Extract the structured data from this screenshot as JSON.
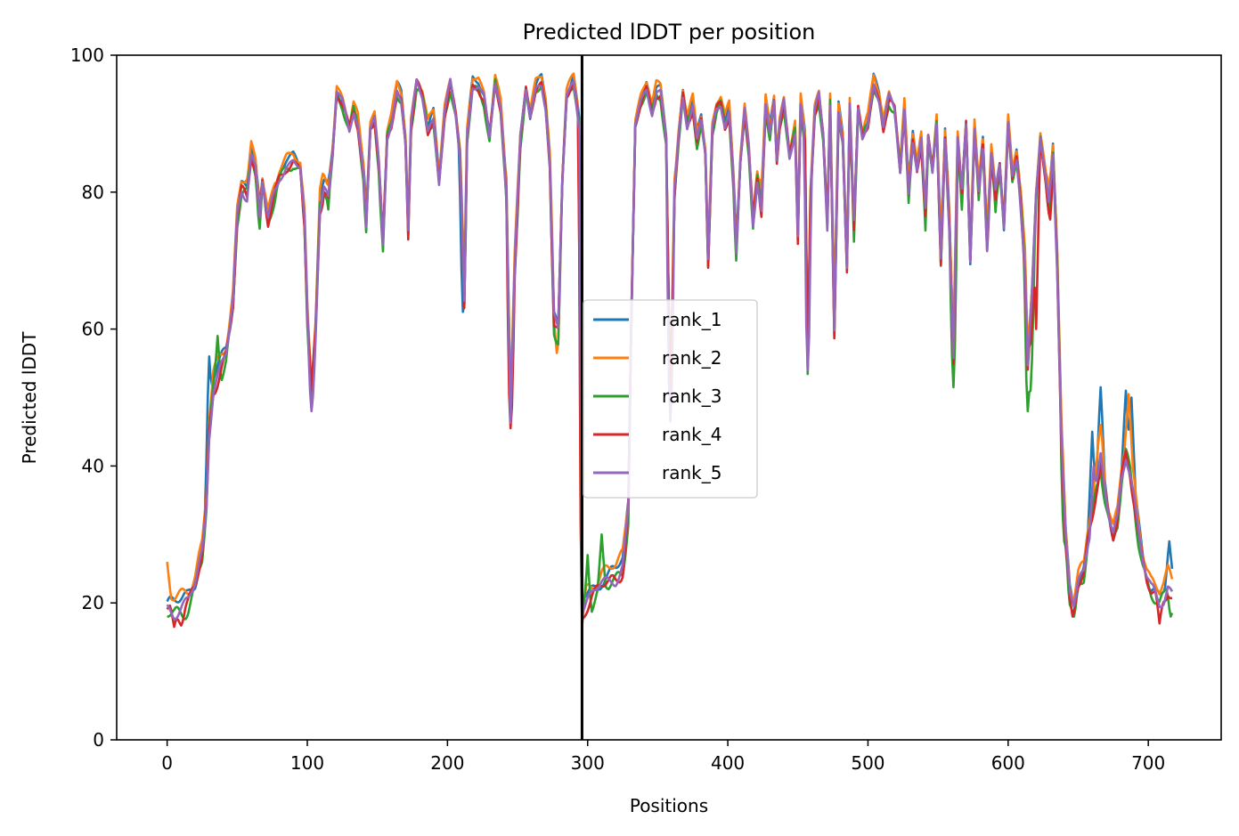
{
  "chart_data": {
    "type": "line",
    "title": "Predicted lDDT per position",
    "xlabel": "Positions",
    "ylabel": "Predicted lDDT",
    "xlim": [
      -36,
      752
    ],
    "ylim": [
      0,
      100
    ],
    "xticks": [
      0,
      100,
      200,
      300,
      400,
      500,
      600,
      700
    ],
    "yticks": [
      0,
      20,
      40,
      60,
      80,
      100
    ],
    "grid": false,
    "legend_position": "center",
    "vline_x": 296,
    "base_profile": [
      [
        0,
        19
      ],
      [
        5,
        19
      ],
      [
        10,
        20
      ],
      [
        15,
        21
      ],
      [
        20,
        23
      ],
      [
        25,
        27
      ],
      [
        28,
        34
      ],
      [
        30,
        45
      ],
      [
        33,
        52
      ],
      [
        38,
        55
      ],
      [
        42,
        57
      ],
      [
        45,
        61
      ],
      [
        47,
        64
      ],
      [
        50,
        76
      ],
      [
        53,
        80
      ],
      [
        57,
        80
      ],
      [
        60,
        86
      ],
      [
        63,
        84
      ],
      [
        66,
        77
      ],
      [
        68,
        82
      ],
      [
        72,
        76
      ],
      [
        76,
        79
      ],
      [
        80,
        82
      ],
      [
        85,
        84
      ],
      [
        90,
        85
      ],
      [
        95,
        84
      ],
      [
        98,
        76
      ],
      [
        100,
        62
      ],
      [
        103,
        50
      ],
      [
        106,
        60
      ],
      [
        109,
        78
      ],
      [
        112,
        81
      ],
      [
        115,
        80
      ],
      [
        118,
        86
      ],
      [
        121,
        95
      ],
      [
        125,
        93
      ],
      [
        130,
        89
      ],
      [
        133,
        92
      ],
      [
        136,
        90
      ],
      [
        140,
        83
      ],
      [
        142,
        76
      ],
      [
        145,
        90
      ],
      [
        148,
        91
      ],
      [
        151,
        84
      ],
      [
        154,
        72
      ],
      [
        157,
        88
      ],
      [
        160,
        90
      ],
      [
        164,
        95
      ],
      [
        167,
        94
      ],
      [
        170,
        88
      ],
      [
        172,
        75
      ],
      [
        174,
        90
      ],
      [
        178,
        96
      ],
      [
        182,
        94
      ],
      [
        186,
        89
      ],
      [
        190,
        91
      ],
      [
        194,
        82
      ],
      [
        198,
        92
      ],
      [
        202,
        96
      ],
      [
        206,
        91
      ],
      [
        209,
        85
      ],
      [
        212,
        64
      ],
      [
        214,
        88
      ],
      [
        218,
        96
      ],
      [
        222,
        96
      ],
      [
        226,
        94
      ],
      [
        230,
        88
      ],
      [
        234,
        96
      ],
      [
        238,
        92
      ],
      [
        242,
        80
      ],
      [
        245,
        48
      ],
      [
        248,
        70
      ],
      [
        252,
        88
      ],
      [
        256,
        95
      ],
      [
        259,
        91
      ],
      [
        263,
        95
      ],
      [
        267,
        96
      ],
      [
        270,
        93
      ],
      [
        273,
        85
      ],
      [
        276,
        62
      ],
      [
        279,
        60
      ],
      [
        282,
        82
      ],
      [
        285,
        94
      ],
      [
        290,
        96
      ],
      [
        294,
        90
      ],
      [
        296,
        20
      ],
      [
        300,
        21
      ],
      [
        305,
        22
      ],
      [
        310,
        23
      ],
      [
        315,
        23
      ],
      [
        320,
        24
      ],
      [
        325,
        26
      ],
      [
        329,
        34
      ],
      [
        331,
        60
      ],
      [
        334,
        90
      ],
      [
        338,
        93
      ],
      [
        342,
        95
      ],
      [
        346,
        92
      ],
      [
        349,
        95
      ],
      [
        352,
        95
      ],
      [
        356,
        88
      ],
      [
        359,
        49
      ],
      [
        362,
        80
      ],
      [
        365,
        88
      ],
      [
        368,
        94
      ],
      [
        371,
        90
      ],
      [
        375,
        93
      ],
      [
        378,
        88
      ],
      [
        381,
        91
      ],
      [
        384,
        86
      ],
      [
        386,
        70
      ],
      [
        389,
        89
      ],
      [
        392,
        92
      ],
      [
        395,
        93
      ],
      [
        398,
        90
      ],
      [
        401,
        92
      ],
      [
        404,
        82
      ],
      [
        406,
        72
      ],
      [
        409,
        85
      ],
      [
        412,
        92
      ],
      [
        415,
        86
      ],
      [
        418,
        75
      ],
      [
        421,
        82
      ],
      [
        424,
        78
      ],
      [
        427,
        93
      ],
      [
        430,
        89
      ],
      [
        433,
        94
      ],
      [
        435,
        85
      ],
      [
        437,
        90
      ],
      [
        440,
        93
      ],
      [
        444,
        85
      ],
      [
        448,
        89
      ],
      [
        450,
        74
      ],
      [
        452,
        93
      ],
      [
        455,
        88
      ],
      [
        457,
        55
      ],
      [
        459,
        80
      ],
      [
        462,
        92
      ],
      [
        465,
        94
      ],
      [
        468,
        88
      ],
      [
        471,
        75
      ],
      [
        473,
        93
      ],
      [
        476,
        60
      ],
      [
        479,
        92
      ],
      [
        482,
        88
      ],
      [
        485,
        70
      ],
      [
        487,
        93
      ],
      [
        490,
        75
      ],
      [
        493,
        92
      ],
      [
        496,
        88
      ],
      [
        500,
        90
      ],
      [
        504,
        96
      ],
      [
        508,
        94
      ],
      [
        511,
        90
      ],
      [
        515,
        94
      ],
      [
        519,
        92
      ],
      [
        523,
        83
      ],
      [
        526,
        92
      ],
      [
        529,
        80
      ],
      [
        532,
        88
      ],
      [
        535,
        84
      ],
      [
        538,
        88
      ],
      [
        541,
        77
      ],
      [
        543,
        88
      ],
      [
        546,
        83
      ],
      [
        549,
        90
      ],
      [
        552,
        70
      ],
      [
        555,
        88
      ],
      [
        558,
        76
      ],
      [
        561,
        57
      ],
      [
        564,
        88
      ],
      [
        567,
        80
      ],
      [
        570,
        90
      ],
      [
        573,
        70
      ],
      [
        576,
        89
      ],
      [
        579,
        80
      ],
      [
        582,
        87
      ],
      [
        585,
        73
      ],
      [
        588,
        86
      ],
      [
        591,
        80
      ],
      [
        594,
        84
      ],
      [
        597,
        75
      ],
      [
        600,
        90
      ],
      [
        603,
        82
      ],
      [
        606,
        85
      ],
      [
        609,
        79
      ],
      [
        612,
        70
      ],
      [
        614,
        55
      ],
      [
        617,
        65
      ],
      [
        620,
        80
      ],
      [
        623,
        88
      ],
      [
        626,
        83
      ],
      [
        629,
        78
      ],
      [
        632,
        86
      ],
      [
        635,
        70
      ],
      [
        638,
        45
      ],
      [
        641,
        30
      ],
      [
        644,
        22
      ],
      [
        647,
        20
      ],
      [
        650,
        23
      ],
      [
        654,
        24
      ],
      [
        657,
        29
      ],
      [
        660,
        33
      ],
      [
        663,
        38
      ],
      [
        666,
        42
      ],
      [
        669,
        37
      ],
      [
        672,
        33
      ],
      [
        675,
        30
      ],
      [
        678,
        32
      ],
      [
        681,
        38
      ],
      [
        684,
        42
      ],
      [
        687,
        40
      ],
      [
        690,
        36
      ],
      [
        693,
        31
      ],
      [
        696,
        27
      ],
      [
        699,
        24
      ],
      [
        702,
        22
      ],
      [
        705,
        21
      ],
      [
        708,
        20
      ],
      [
        711,
        21
      ],
      [
        714,
        23
      ],
      [
        717,
        22
      ]
    ],
    "series": [
      {
        "name": "rank_1",
        "color": "#1f77b4",
        "offset": 0.6,
        "wobble": 1.6,
        "phase": 0.4,
        "overrides": [
          [
            30,
            56
          ],
          [
            211,
            62.5
          ],
          [
            660,
            45
          ],
          [
            666,
            51.5
          ],
          [
            684,
            51
          ],
          [
            688,
            50
          ],
          [
            715,
            29
          ]
        ]
      },
      {
        "name": "rank_2",
        "color": "#ff7f0e",
        "offset": 1.4,
        "wobble": 1.5,
        "phase": 1.7,
        "overrides": [
          [
            0,
            26
          ],
          [
            278,
            56.5
          ],
          [
            296,
            16.5
          ],
          [
            666,
            46
          ],
          [
            686,
            50.5
          ]
        ]
      },
      {
        "name": "rank_3",
        "color": "#2ca02c",
        "offset": -1.0,
        "wobble": 2.0,
        "phase": 2.9,
        "overrides": [
          [
            36,
            59
          ],
          [
            300,
            27
          ],
          [
            310,
            30
          ],
          [
            561,
            51.5
          ],
          [
            614,
            47
          ],
          [
            616,
            51
          ],
          [
            640,
            29
          ],
          [
            647,
            18
          ],
          [
            716,
            18
          ]
        ]
      },
      {
        "name": "rank_4",
        "color": "#d62728",
        "offset": -0.6,
        "wobble": 1.8,
        "phase": 4.1,
        "overrides": [
          [
            5,
            16.5
          ],
          [
            10,
            16.7
          ],
          [
            245,
            45.5
          ],
          [
            296,
            17.5
          ],
          [
            616,
            58
          ],
          [
            620,
            60
          ],
          [
            630,
            76
          ],
          [
            646,
            18
          ],
          [
            708,
            17
          ]
        ]
      },
      {
        "name": "rank_5",
        "color": "#9467bd",
        "offset": -0.3,
        "wobble": 1.4,
        "phase": 5.3,
        "overrides": [
          [
            103,
            48
          ],
          [
            359,
            46.5
          ],
          [
            457,
            54
          ],
          [
            661,
            40
          ]
        ]
      }
    ]
  }
}
